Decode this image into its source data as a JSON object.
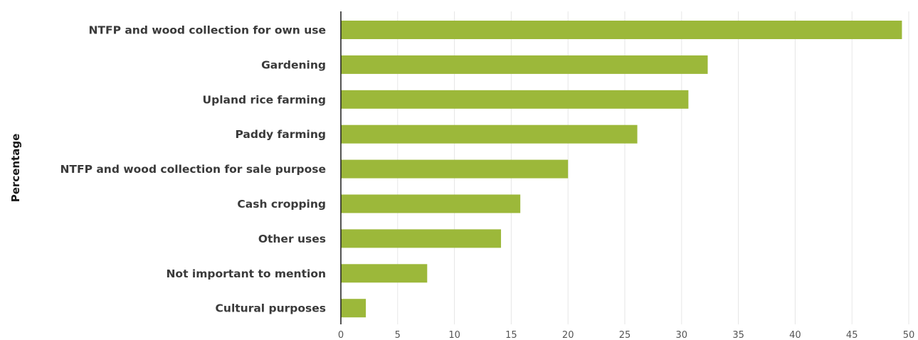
{
  "chart_data": {
    "type": "bar",
    "orientation": "horizontal",
    "ylabel": "Percentage",
    "xlabel": "",
    "xlim": [
      0,
      50
    ],
    "xticks": [
      0,
      5,
      10,
      15,
      20,
      25,
      30,
      35,
      40,
      45,
      50
    ],
    "grid": true,
    "bar_color": "#9cb83a",
    "categories": [
      "NTFP and wood collection for own use",
      "Gardening",
      "Upland rice farming",
      "Paddy farming",
      "NTFP and wood collection for sale purpose",
      "Cash cropping",
      "Other uses",
      "Not important to mention",
      "Cultural purposes"
    ],
    "values": [
      49.4,
      32.3,
      30.6,
      26.1,
      20.0,
      15.8,
      14.1,
      7.6,
      2.2
    ]
  }
}
